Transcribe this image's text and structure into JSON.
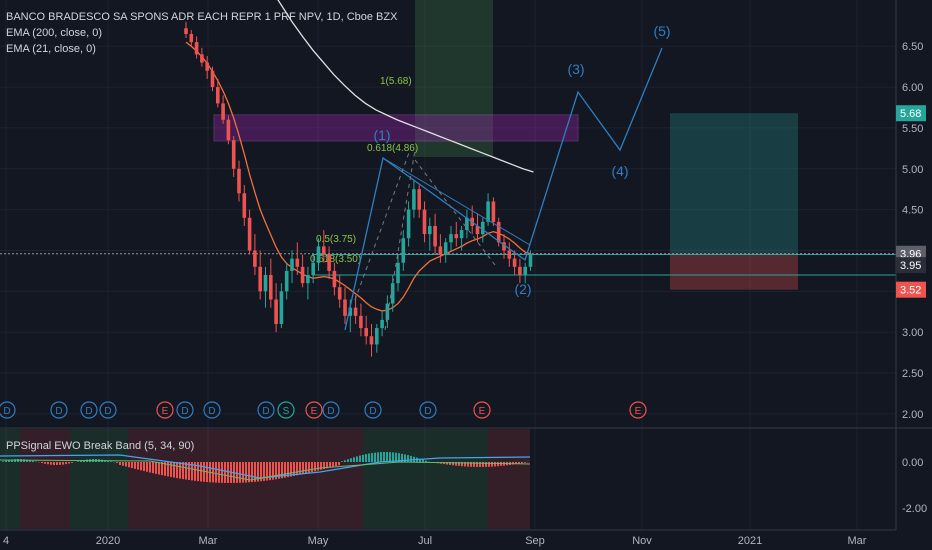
{
  "legend": {
    "title": "BANCO BRADESCO SA SPONS ADR EACH REPR 1 PRF NPV, 1D, Cboe BZX",
    "ema200": "EMA (200, close, 0)",
    "ema21": "EMA (21, close, 0)"
  },
  "indicator": {
    "legend": "PPSignal EWO Break Band (5, 34, 90)",
    "ticks": [
      "0.00",
      "-2.00"
    ]
  },
  "colors": {
    "background": "#131722",
    "up": "#26a69a",
    "down": "#ef5350",
    "ema200": "#e0e0e0",
    "ema21": "#f0703c",
    "wave": "#2f7fc1",
    "zone_purple": "#9c27b0",
    "fib": "#4caf50"
  },
  "chart_data": {
    "type": "candlestick",
    "title": "BANCO BRADESCO SA SPONS ADR EACH REPR 1 PRF NPV, 1D, Cboe BZX",
    "x_ticks": [
      "4",
      "2020",
      "Mar",
      "May",
      "Jul",
      "Sep",
      "Nov",
      "2021",
      "Mar"
    ],
    "y_ticks": [
      "6.50",
      "6.00",
      "5.50",
      "5.00",
      "4.50",
      "4.00",
      "3.50",
      "3.00",
      "2.50",
      "2.00"
    ],
    "ylim": [
      1.5,
      6.7
    ],
    "price_labels": {
      "target": "5.68",
      "current": "3.96",
      "entry": "3.95",
      "stop": "3.52"
    },
    "wave_labels": [
      "(1)",
      "(2)",
      "(3)",
      "(4)",
      "(5)"
    ],
    "fib_labels": [
      "1(5.68)",
      "0.618(4.86)",
      "0.5(3.75)",
      "0.618(3.50)"
    ],
    "dividend_markers": [
      "D",
      "D",
      "D",
      "D",
      "E",
      "D",
      "D",
      "D",
      "S",
      "E",
      "D",
      "D",
      "D",
      "E",
      "E"
    ],
    "candles": [
      [
        6.72,
        6.8,
        6.6,
        6.65
      ],
      [
        6.65,
        6.7,
        6.5,
        6.55
      ],
      [
        6.55,
        6.62,
        6.35,
        6.4
      ],
      [
        6.4,
        6.48,
        6.25,
        6.3
      ],
      [
        6.3,
        6.38,
        6.1,
        6.2
      ],
      [
        6.2,
        6.25,
        5.95,
        6.0
      ],
      [
        6.0,
        6.1,
        5.75,
        5.8
      ],
      [
        5.8,
        5.9,
        5.55,
        5.6
      ],
      [
        5.6,
        5.65,
        5.3,
        5.35
      ],
      [
        5.35,
        5.4,
        4.9,
        5.0
      ],
      [
        5.0,
        5.1,
        4.6,
        4.7
      ],
      [
        4.7,
        4.8,
        4.3,
        4.4
      ],
      [
        4.4,
        4.5,
        3.95,
        4.0
      ],
      [
        4.0,
        4.2,
        3.7,
        3.8
      ],
      [
        3.8,
        4.0,
        3.4,
        3.5
      ],
      [
        3.5,
        3.8,
        3.3,
        3.7
      ],
      [
        3.7,
        3.9,
        3.3,
        3.4
      ],
      [
        3.4,
        3.6,
        3.0,
        3.1
      ],
      [
        3.1,
        3.6,
        3.05,
        3.5
      ],
      [
        3.5,
        3.85,
        3.4,
        3.75
      ],
      [
        3.75,
        4.0,
        3.6,
        3.9
      ],
      [
        3.9,
        4.1,
        3.7,
        3.8
      ],
      [
        3.8,
        3.95,
        3.55,
        3.6
      ],
      [
        3.6,
        3.8,
        3.4,
        3.7
      ],
      [
        3.7,
        3.95,
        3.6,
        3.85
      ],
      [
        3.85,
        4.15,
        3.75,
        4.05
      ],
      [
        4.05,
        4.25,
        3.85,
        3.95
      ],
      [
        3.95,
        4.05,
        3.65,
        3.75
      ],
      [
        3.75,
        3.85,
        3.45,
        3.55
      ],
      [
        3.55,
        3.7,
        3.3,
        3.4
      ],
      [
        3.4,
        3.55,
        3.1,
        3.2
      ],
      [
        3.2,
        3.4,
        3.0,
        3.3
      ],
      [
        3.3,
        3.45,
        3.1,
        3.2
      ],
      [
        3.2,
        3.35,
        2.95,
        3.05
      ],
      [
        3.05,
        3.2,
        2.85,
        2.95
      ],
      [
        2.95,
        3.1,
        2.7,
        2.85
      ],
      [
        2.85,
        3.1,
        2.75,
        3.05
      ],
      [
        3.05,
        3.25,
        2.95,
        3.15
      ],
      [
        3.15,
        3.45,
        3.05,
        3.35
      ],
      [
        3.35,
        3.7,
        3.25,
        3.6
      ],
      [
        3.6,
        3.95,
        3.5,
        3.85
      ],
      [
        3.85,
        4.25,
        3.75,
        4.15
      ],
      [
        4.15,
        4.6,
        4.05,
        4.5
      ],
      [
        4.5,
        4.86,
        4.4,
        4.75
      ],
      [
        4.75,
        4.8,
        4.4,
        4.5
      ],
      [
        4.5,
        4.6,
        4.1,
        4.2
      ],
      [
        4.2,
        4.4,
        4.0,
        4.3
      ],
      [
        4.3,
        4.45,
        3.95,
        4.05
      ],
      [
        4.05,
        4.2,
        3.85,
        3.95
      ],
      [
        3.95,
        4.15,
        3.85,
        4.1
      ],
      [
        4.1,
        4.3,
        4.0,
        4.2
      ],
      [
        4.2,
        4.35,
        4.05,
        4.15
      ],
      [
        4.15,
        4.3,
        4.0,
        4.25
      ],
      [
        4.25,
        4.5,
        4.15,
        4.4
      ],
      [
        4.4,
        4.55,
        4.2,
        4.3
      ],
      [
        4.3,
        4.45,
        4.1,
        4.2
      ],
      [
        4.2,
        4.4,
        4.1,
        4.35
      ],
      [
        4.35,
        4.7,
        4.3,
        4.6
      ],
      [
        4.6,
        4.65,
        4.3,
        4.35
      ],
      [
        4.35,
        4.4,
        4.05,
        4.1
      ],
      [
        4.1,
        4.2,
        3.9,
        4.0
      ],
      [
        4.0,
        4.1,
        3.8,
        3.9
      ],
      [
        3.9,
        4.0,
        3.7,
        3.8
      ],
      [
        3.8,
        3.9,
        3.6,
        3.7
      ],
      [
        3.7,
        3.85,
        3.6,
        3.8
      ],
      [
        3.8,
        4.0,
        3.75,
        3.96
      ]
    ],
    "ema21": [
      6.55,
      6.5,
      6.44,
      6.37,
      6.29,
      6.19,
      6.08,
      5.95,
      5.8,
      5.62,
      5.41,
      5.18,
      4.93,
      4.71,
      4.5,
      4.34,
      4.19,
      4.04,
      3.92,
      3.84,
      3.79,
      3.75,
      3.71,
      3.68,
      3.66,
      3.67,
      3.68,
      3.67,
      3.65,
      3.61,
      3.57,
      3.52,
      3.47,
      3.42,
      3.36,
      3.31,
      3.28,
      3.26,
      3.27,
      3.3,
      3.35,
      3.43,
      3.54,
      3.66,
      3.75,
      3.81,
      3.87,
      3.9,
      3.93,
      3.96,
      3.99,
      4.02,
      4.05,
      4.09,
      4.12,
      4.14,
      4.17,
      4.21,
      4.23,
      4.21,
      4.18,
      4.14,
      4.09,
      4.03,
      3.98,
      3.96
    ],
    "ema200": [
      7.6,
      7.4,
      7.2,
      7.0,
      6.8,
      6.62,
      6.45,
      6.3,
      6.15,
      6.02,
      5.9,
      5.8,
      5.72,
      5.66,
      5.6,
      5.55,
      5.5,
      5.45,
      5.4,
      5.35,
      5.3,
      5.25,
      5.2,
      5.15,
      5.1,
      5.05,
      5.0,
      4.96
    ]
  }
}
